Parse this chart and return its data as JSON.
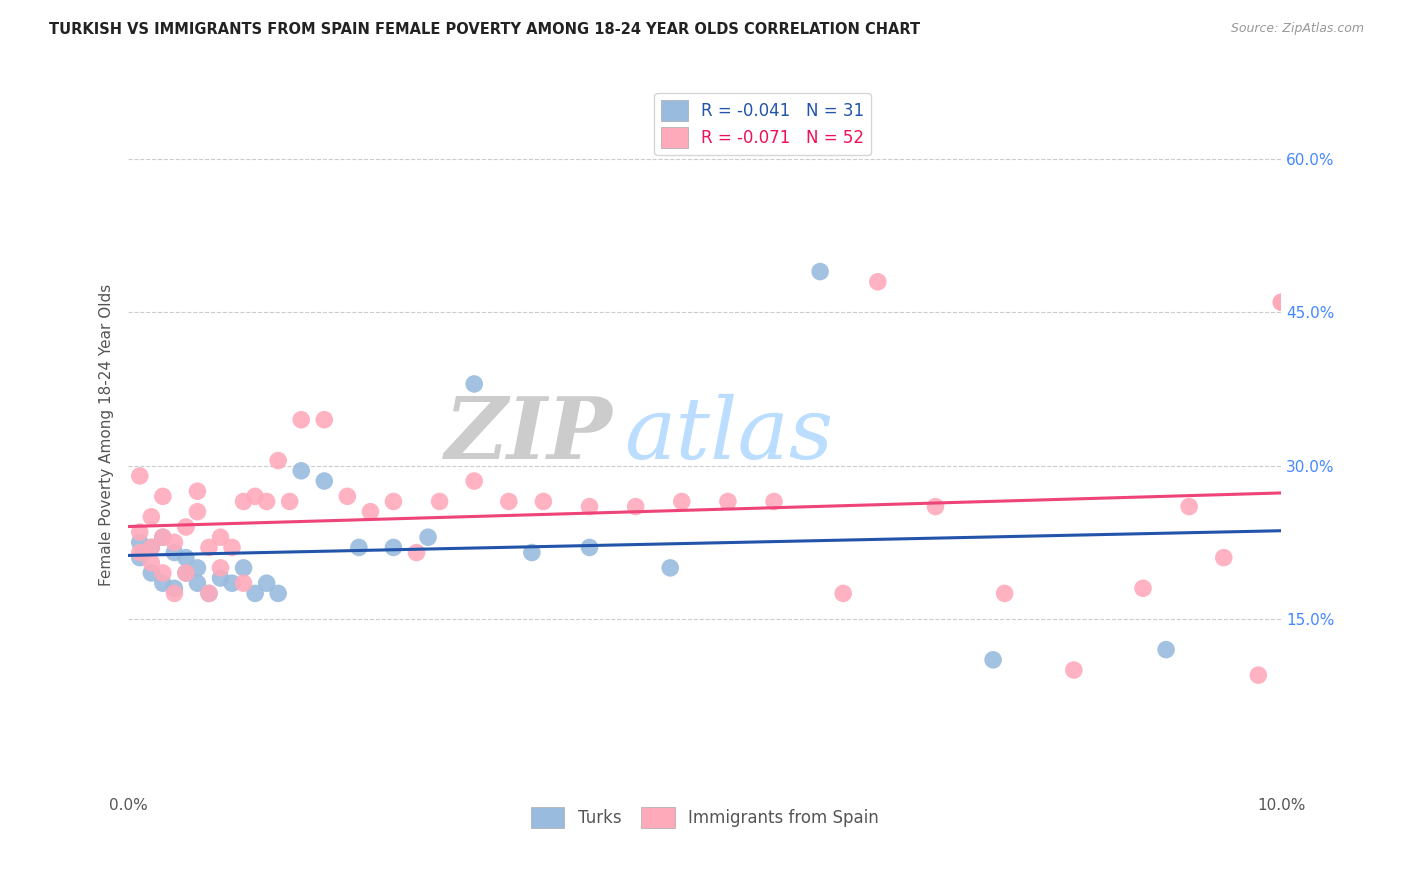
{
  "title": "TURKISH VS IMMIGRANTS FROM SPAIN FEMALE POVERTY AMONG 18-24 YEAR OLDS CORRELATION CHART",
  "source": "Source: ZipAtlas.com",
  "ylabel": "Female Poverty Among 18-24 Year Olds",
  "xlim": [
    0.0,
    0.1
  ],
  "ylim": [
    -0.02,
    0.68
  ],
  "xticks": [
    0.0,
    0.02,
    0.04,
    0.06,
    0.08,
    0.1
  ],
  "yticks": [
    0.15,
    0.3,
    0.45,
    0.6
  ],
  "ytick_labels": [
    "15.0%",
    "30.0%",
    "45.0%",
    "60.0%"
  ],
  "xtick_labels": [
    "0.0%",
    "",
    "",
    "",
    "",
    "10.0%"
  ],
  "blue_R": -0.041,
  "blue_N": 31,
  "pink_R": -0.071,
  "pink_N": 52,
  "blue_color": "#99BBDD",
  "pink_color": "#FFAABB",
  "blue_line_color": "#2255AA",
  "pink_line_color": "#EE4477",
  "watermark_zip": "ZIP",
  "watermark_atlas": "atlas",
  "background_color": "#FFFFFF",
  "blue_x": [
    0.001,
    0.001,
    0.002,
    0.002,
    0.003,
    0.003,
    0.004,
    0.004,
    0.005,
    0.005,
    0.006,
    0.006,
    0.007,
    0.008,
    0.009,
    0.01,
    0.011,
    0.012,
    0.013,
    0.015,
    0.017,
    0.02,
    0.023,
    0.026,
    0.03,
    0.035,
    0.04,
    0.047,
    0.06,
    0.075,
    0.09
  ],
  "blue_y": [
    0.225,
    0.21,
    0.22,
    0.195,
    0.23,
    0.185,
    0.215,
    0.18,
    0.195,
    0.21,
    0.2,
    0.185,
    0.175,
    0.19,
    0.185,
    0.2,
    0.175,
    0.185,
    0.175,
    0.295,
    0.285,
    0.22,
    0.22,
    0.23,
    0.38,
    0.215,
    0.22,
    0.2,
    0.49,
    0.11,
    0.12
  ],
  "pink_x": [
    0.001,
    0.001,
    0.001,
    0.002,
    0.002,
    0.002,
    0.003,
    0.003,
    0.003,
    0.004,
    0.004,
    0.005,
    0.005,
    0.006,
    0.006,
    0.007,
    0.007,
    0.008,
    0.008,
    0.009,
    0.01,
    0.01,
    0.011,
    0.012,
    0.013,
    0.014,
    0.015,
    0.017,
    0.019,
    0.021,
    0.023,
    0.025,
    0.027,
    0.03,
    0.033,
    0.036,
    0.04,
    0.044,
    0.048,
    0.052,
    0.056,
    0.062,
    0.065,
    0.07,
    0.076,
    0.082,
    0.088,
    0.092,
    0.095,
    0.098,
    0.1,
    0.1
  ],
  "pink_y": [
    0.235,
    0.215,
    0.29,
    0.22,
    0.25,
    0.205,
    0.23,
    0.27,
    0.195,
    0.225,
    0.175,
    0.24,
    0.195,
    0.275,
    0.255,
    0.22,
    0.175,
    0.23,
    0.2,
    0.22,
    0.265,
    0.185,
    0.27,
    0.265,
    0.305,
    0.265,
    0.345,
    0.345,
    0.27,
    0.255,
    0.265,
    0.215,
    0.265,
    0.285,
    0.265,
    0.265,
    0.26,
    0.26,
    0.265,
    0.265,
    0.265,
    0.175,
    0.48,
    0.26,
    0.175,
    0.1,
    0.18,
    0.26,
    0.21,
    0.095,
    0.46,
    0.46
  ]
}
